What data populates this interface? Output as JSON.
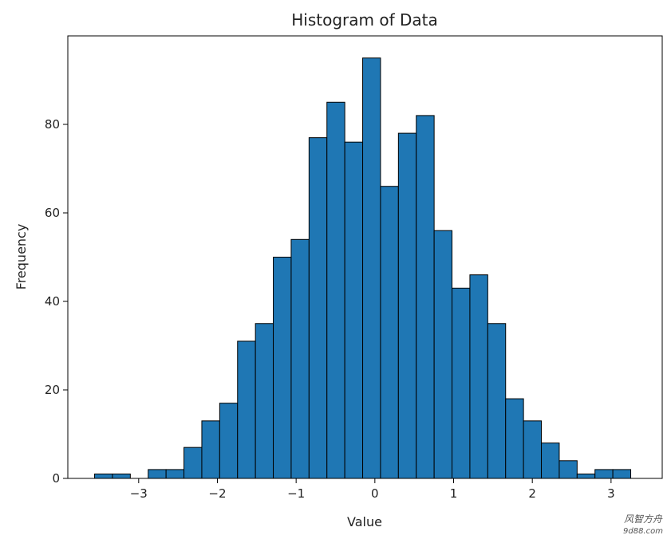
{
  "chart_data": {
    "type": "bar",
    "title": "Histogram of Data",
    "xlabel": "Value",
    "ylabel": "Frequency",
    "bin_start": -3.56,
    "bin_width": 0.227,
    "counts": [
      1,
      1,
      0,
      2,
      2,
      7,
      13,
      17,
      31,
      35,
      50,
      54,
      77,
      85,
      76,
      95,
      66,
      78,
      82,
      56,
      43,
      46,
      35,
      18,
      13,
      8,
      4,
      1,
      2,
      2
    ],
    "xlim": [
      -3.9,
      3.65
    ],
    "ylim": [
      0,
      100
    ],
    "xticks": [
      -3,
      -2,
      -1,
      0,
      1,
      2,
      3
    ],
    "xtick_labels": [
      "−3",
      "−2",
      "−1",
      "0",
      "1",
      "2",
      "3"
    ],
    "yticks": [
      0,
      20,
      40,
      60,
      80
    ],
    "ytick_labels": [
      "0",
      "20",
      "40",
      "60",
      "80"
    ],
    "bar_color": "#1f77b4",
    "edge_color": "#000000",
    "grid": false
  },
  "watermark": {
    "line1": "风智方舟",
    "line2": "9d88.com"
  }
}
